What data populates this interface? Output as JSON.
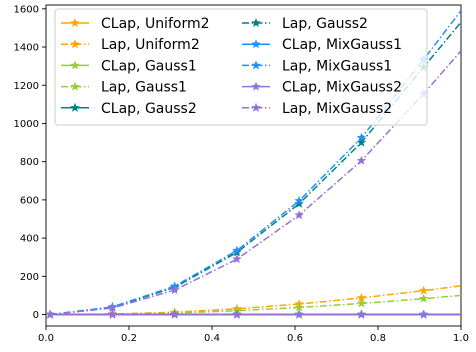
{
  "chart_data": {
    "type": "line",
    "title": "",
    "xlabel": "",
    "ylabel": "",
    "xlim": [
      0.0,
      1.0
    ],
    "ylim": [
      -60,
      1620
    ],
    "grid": false,
    "legend_position": "top-left",
    "legend_columns": 2,
    "x": [
      0.01,
      0.16,
      0.31,
      0.46,
      0.61,
      0.76,
      0.91,
      1.0
    ],
    "xticks": [
      0.0,
      0.2,
      0.4,
      0.6,
      0.8,
      1.0
    ],
    "xtick_labels": [
      "0.0",
      "0.2",
      "0.4",
      "0.6",
      "0.8",
      "1.0"
    ],
    "yticks": [
      0,
      200,
      400,
      600,
      800,
      1000,
      1200,
      1400,
      1600
    ],
    "ytick_labels": [
      "0",
      "200",
      "400",
      "600",
      "800",
      "1000",
      "1200",
      "1400",
      "1600"
    ],
    "marker_indices": [
      0,
      1,
      2,
      3,
      4,
      5,
      6
    ],
    "series": [
      {
        "name": "CLap, Uniform2",
        "color": "#ffa500",
        "dash": "solid",
        "marker": "star",
        "values": [
          0,
          0,
          0,
          0,
          0,
          0,
          0,
          0
        ]
      },
      {
        "name": "Lap, Uniform2",
        "color": "#ffa500",
        "dash": "dashdot",
        "marker": "star",
        "values": [
          0,
          3,
          12,
          30,
          55,
          87,
          125,
          150
        ]
      },
      {
        "name": "CLap, Gauss1",
        "color": "#9acd32",
        "dash": "solid",
        "marker": "star",
        "values": [
          0,
          0,
          0,
          0,
          0,
          0,
          0,
          0
        ]
      },
      {
        "name": "Lap, Gauss1",
        "color": "#9acd32",
        "dash": "dashdot",
        "marker": "star",
        "values": [
          0,
          2,
          8,
          20,
          37,
          58,
          83,
          100
        ]
      },
      {
        "name": "CLap, Gauss2",
        "color": "#008080",
        "dash": "solid",
        "marker": "star",
        "values": [
          0,
          0,
          0,
          0,
          0,
          0,
          0,
          0
        ]
      },
      {
        "name": "Lap, Gauss2",
        "color": "#008080",
        "dash": "dashdot",
        "marker": "star",
        "values": [
          0,
          38,
          142,
          325,
          580,
          900,
          1295,
          1530
        ]
      },
      {
        "name": "CLap, MixGauss1",
        "color": "#1e90ff",
        "dash": "solid",
        "marker": "star",
        "values": [
          0,
          0,
          0,
          0,
          0,
          0,
          0,
          0
        ]
      },
      {
        "name": "Lap, MixGauss1",
        "color": "#1e90ff",
        "dash": "dashdot",
        "marker": "star",
        "values": [
          0,
          40,
          148,
          335,
          595,
          925,
          1335,
          1590
        ]
      },
      {
        "name": "CLap, MixGauss2",
        "color": "#9370db",
        "dash": "solid",
        "marker": "star",
        "values": [
          0,
          0,
          0,
          0,
          0,
          0,
          0,
          0
        ]
      },
      {
        "name": "Lap, MixGauss2",
        "color": "#9370db",
        "dash": "dashdot",
        "marker": "star",
        "values": [
          0,
          34,
          128,
          290,
          520,
          805,
          1155,
          1380
        ]
      }
    ]
  }
}
